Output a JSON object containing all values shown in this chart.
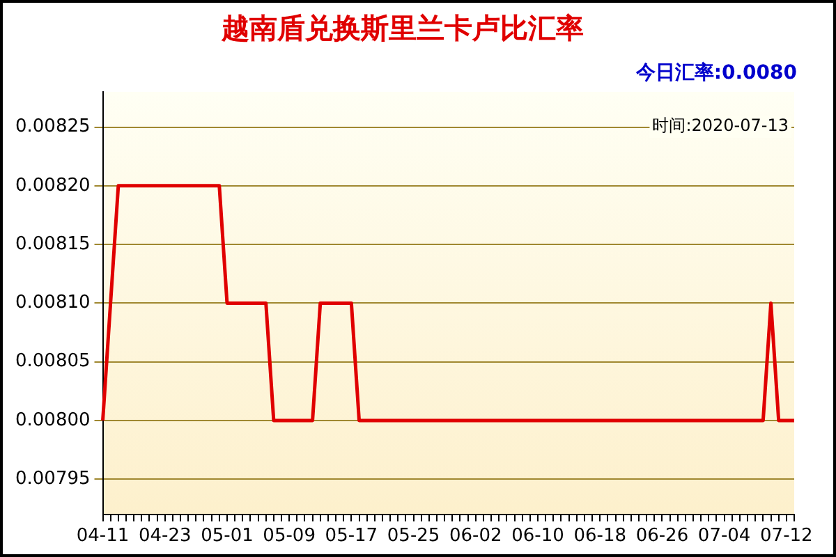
{
  "chart_data": {
    "type": "line",
    "title": "越南盾兑换斯里兰卡卢比汇率",
    "annotations": [
      "今日汇率:0.0080",
      "时间:2020-07-13"
    ],
    "categories": [
      "04-11",
      null,
      null,
      null,
      null,
      null,
      null,
      null,
      "04-23",
      null,
      null,
      null,
      null,
      null,
      null,
      null,
      "05-01",
      null,
      null,
      null,
      null,
      null,
      null,
      null,
      "05-09",
      null,
      null,
      null,
      null,
      null,
      null,
      null,
      "05-17",
      null,
      null,
      null,
      null,
      null,
      null,
      null,
      "05-25",
      null,
      null,
      null,
      null,
      null,
      null,
      null,
      "06-02",
      null,
      null,
      null,
      null,
      null,
      null,
      null,
      "06-10",
      null,
      null,
      null,
      null,
      null,
      null,
      null,
      "06-18",
      null,
      null,
      null,
      null,
      null,
      null,
      null,
      "06-26",
      null,
      null,
      null,
      null,
      null,
      null,
      null,
      "07-04",
      null,
      null,
      null,
      null,
      null,
      null,
      null,
      "07-12",
      null
    ],
    "series": [
      {
        "color": "#e00000",
        "values": [
          0.008,
          0.0081,
          0.0082,
          0.0082,
          0.0082,
          0.0082,
          0.0082,
          0.0082,
          0.0082,
          0.0082,
          0.0082,
          0.0082,
          0.0082,
          0.0082,
          0.0082,
          0.0082,
          0.0081,
          0.0081,
          0.0081,
          0.0081,
          0.0081,
          0.0081,
          0.008,
          0.008,
          0.008,
          0.008,
          0.008,
          0.008,
          0.0081,
          0.0081,
          0.0081,
          0.0081,
          0.0081,
          0.008,
          0.008,
          0.008,
          0.008,
          0.008,
          0.008,
          0.008,
          0.008,
          0.008,
          0.008,
          0.008,
          0.008,
          0.008,
          0.008,
          0.008,
          0.008,
          0.008,
          0.008,
          0.008,
          0.008,
          0.008,
          0.008,
          0.008,
          0.008,
          0.008,
          0.008,
          0.008,
          0.008,
          0.008,
          0.008,
          0.008,
          0.008,
          0.008,
          0.008,
          0.008,
          0.008,
          0.008,
          0.008,
          0.008,
          0.008,
          0.008,
          0.008,
          0.008,
          0.008,
          0.008,
          0.008,
          0.008,
          0.008,
          0.008,
          0.008,
          0.008,
          0.008,
          0.008,
          0.0081,
          0.008,
          0.008,
          0.008
        ]
      }
    ],
    "ylim": [
      0.00792,
      0.00828
    ],
    "yticks": [
      0.00795,
      {
        "value": 0.008,
        "label": "0.00800"
      },
      0.00805,
      {
        "value": 0.0081,
        "label": "0.00810"
      },
      0.00815,
      {
        "value": 0.0082,
        "label": "0.00820"
      },
      0.00825
    ],
    "grid": "y",
    "legend": false,
    "marker": "none",
    "line_style": "solid"
  }
}
